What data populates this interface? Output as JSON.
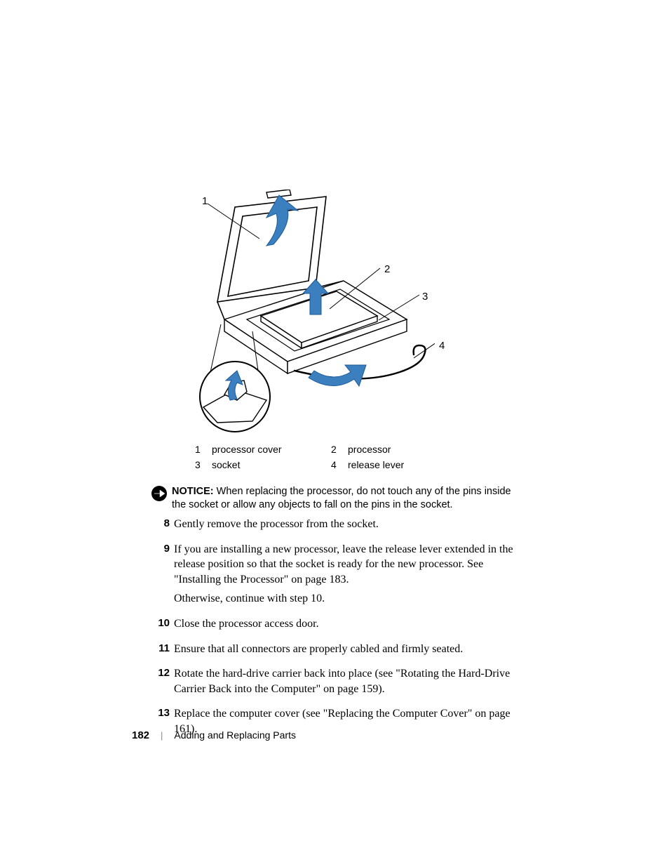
{
  "diagram": {
    "callouts": {
      "c1": "1",
      "c2": "2",
      "c3": "3",
      "c4": "4"
    },
    "colors": {
      "outline": "#000000",
      "arrow_fill": "#3b7fbf",
      "arrow_stroke": "#1b5a9a",
      "socket_fill": "#ffffff",
      "leader_line": "#000000"
    },
    "leader_width": 1
  },
  "legend": {
    "row1": {
      "n1": "1",
      "t1": "processor cover",
      "n2": "2",
      "t2": "processor"
    },
    "row2": {
      "n1": "3",
      "t1": "socket",
      "n2": "4",
      "t2": "release lever"
    }
  },
  "notice": {
    "label": "NOTICE:",
    "text": "When replacing the processor, do not touch any of the pins inside the socket or allow any objects to fall on the pins in the socket."
  },
  "steps": [
    {
      "num": "8",
      "paras": [
        "Gently remove the processor from the socket."
      ]
    },
    {
      "num": "9",
      "paras": [
        "If you are installing a new processor, leave the release lever extended in the release position so that the socket is ready for the new processor. See \"Installing the Processor\" on page 183.",
        "Otherwise, continue with step 10."
      ]
    },
    {
      "num": "10",
      "paras": [
        "Close the processor access door."
      ]
    },
    {
      "num": "11",
      "paras": [
        "Ensure that all connectors are properly cabled and firmly seated."
      ]
    },
    {
      "num": "12",
      "paras": [
        "Rotate the hard-drive carrier back into place (see \"Rotating the Hard-Drive Carrier Back into the Computer\" on page 159)."
      ]
    },
    {
      "num": "13",
      "paras": [
        "Replace the computer cover (see \"Replacing the Computer Cover\" on page 161)."
      ]
    }
  ],
  "footer": {
    "page": "182",
    "sep": "|",
    "title": "Adding and Replacing Parts"
  }
}
